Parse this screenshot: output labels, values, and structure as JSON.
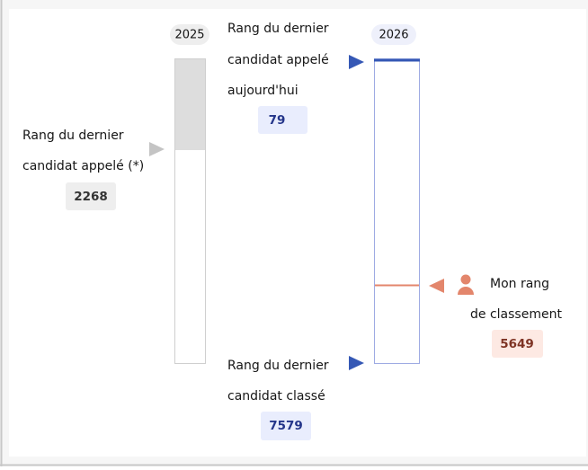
{
  "columns": [
    {
      "year": "2025"
    },
    {
      "year": "2026"
    }
  ],
  "markers": {
    "last_called_2025": {
      "lines": [
        "Rang du dernier",
        "candidat appelé (*)"
      ],
      "value": "2268"
    },
    "last_called_today": {
      "lines": [
        "Rang du dernier",
        "candidat appelé",
        "aujourd'hui"
      ],
      "value": "79"
    },
    "my_rank": {
      "lines": [
        "Mon rang",
        "de classement"
      ],
      "value": "5649"
    },
    "last_ranked": {
      "lines": [
        "Rang du dernier",
        "candidat classé"
      ],
      "value": "7579"
    }
  }
}
